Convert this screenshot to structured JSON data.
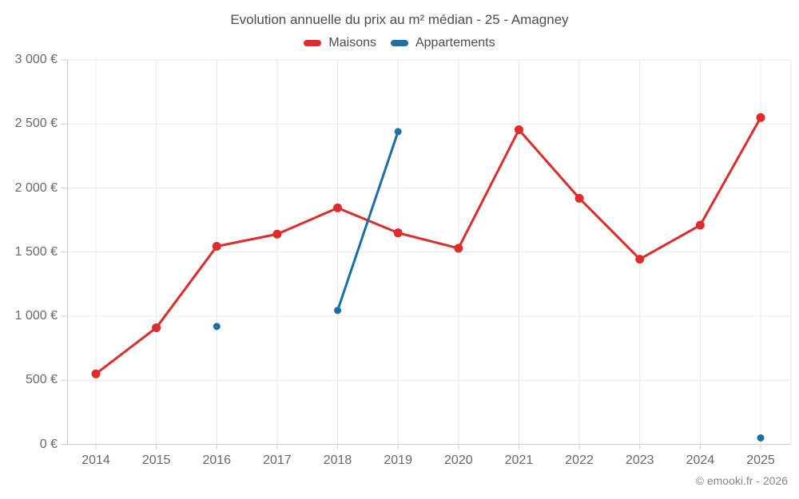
{
  "header": {
    "title": "Evolution annuelle du prix au m² médian - 25 - Amagney"
  },
  "footer": {
    "copyright": "© emooki.fr - 2026"
  },
  "chart_data": {
    "type": "line",
    "title": "Evolution annuelle du prix au m² médian - 25 - Amagney",
    "xlabel": "",
    "ylabel": "",
    "categories": [
      "2014",
      "2015",
      "2016",
      "2017",
      "2018",
      "2019",
      "2020",
      "2021",
      "2022",
      "2023",
      "2024",
      "2025"
    ],
    "series": [
      {
        "name": "Maisons",
        "color": "#e02b2b",
        "marker_radius": 5.5,
        "values": [
          550,
          910,
          1545,
          1640,
          1845,
          1650,
          1530,
          2455,
          1920,
          1445,
          1710,
          2550
        ]
      },
      {
        "name": "Appartements",
        "color": "#1a6fa5",
        "marker_radius": 4.5,
        "values": [
          null,
          null,
          920,
          null,
          1045,
          2440,
          null,
          null,
          null,
          null,
          null,
          50
        ]
      }
    ],
    "ylim": [
      0,
      3000
    ],
    "y_ticks": [
      {
        "value": 0,
        "label": "0 €"
      },
      {
        "value": 500,
        "label": "500 €"
      },
      {
        "value": 1000,
        "label": "1 000 €"
      },
      {
        "value": 1500,
        "label": "1 500 €"
      },
      {
        "value": 2000,
        "label": "2 000 €"
      },
      {
        "value": 2500,
        "label": "2 500 €"
      },
      {
        "value": 3000,
        "label": "3 000 €"
      }
    ],
    "grid": true,
    "legend_position": "top",
    "grid_color": "#e8e8e8",
    "axis_color": "#cfcfcf",
    "currency_suffix": " €"
  }
}
